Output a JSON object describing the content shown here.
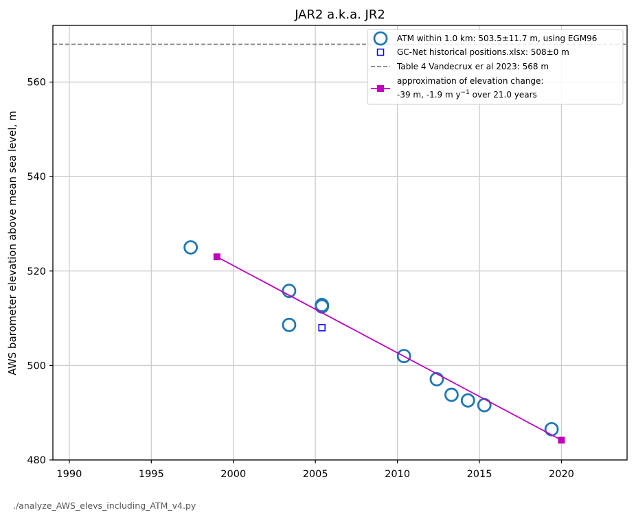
{
  "chart_data": {
    "type": "scatter",
    "title": "JAR2 a.k.a. JR2",
    "xlabel": "",
    "ylabel": "AWS barometer elevation above mean sea level, m",
    "xlim": [
      1989,
      2024
    ],
    "ylim": [
      480,
      572
    ],
    "xticks": [
      1990,
      1995,
      2000,
      2005,
      2010,
      2015,
      2020
    ],
    "yticks": [
      480,
      500,
      520,
      540,
      560
    ],
    "grid": true,
    "legend_position": "top-right",
    "series": [
      {
        "name": "ATM within 1.0 km: 503.5±11.7 m, using EGM96",
        "kind": "scatter",
        "marker": "open-circle",
        "color": "#1f77b4",
        "x": [
          1997.4,
          2003.4,
          2003.4,
          2005.4,
          2005.4,
          2010.4,
          2012.4,
          2013.3,
          2014.3,
          2015.3,
          2019.4
        ],
        "y": [
          525.0,
          515.8,
          508.6,
          512.5,
          512.8,
          502.0,
          497.1,
          493.8,
          492.6,
          491.6,
          486.5
        ]
      },
      {
        "name": "GC-Net historical positions.xlsx: 508±0 m",
        "kind": "scatter",
        "marker": "open-square",
        "color": "#0000ff",
        "x": [
          2005.4
        ],
        "y": [
          508.0
        ]
      },
      {
        "name": "Table 4 Vandecrux er al 2023: 568 m",
        "kind": "hline",
        "style": "dashed",
        "color": "#808080",
        "y": 568
      },
      {
        "name_line1": "approximation of elevation change:",
        "name_line2_pre": "-39 m, -1.9 m y",
        "name_line2_sup": "−1",
        "name_line2_post": " over 21.0 years",
        "kind": "line",
        "marker": "filled-square",
        "color": "#bf00bf",
        "x": [
          1999.0,
          2020.0
        ],
        "y": [
          523.0,
          484.2
        ]
      }
    ]
  },
  "footer": {
    "script_name": "./analyze_AWS_elevs_including_ATM_v4.py"
  }
}
